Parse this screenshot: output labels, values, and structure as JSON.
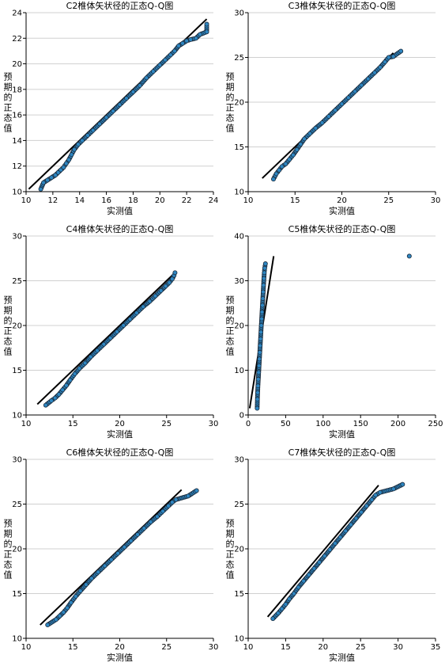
{
  "chart_data": [
    {
      "type": "scatter",
      "title": "C2椎体矢状径的正态Q-Q图",
      "xlabel": "实测值",
      "ylabel": "预期的正态值",
      "xlim": [
        10,
        24
      ],
      "ylim": [
        10,
        24
      ],
      "xticks": [
        "10",
        "12",
        "14",
        "16",
        "18",
        "20",
        "22",
        "24"
      ],
      "yticks": [
        "10",
        "12",
        "14",
        "16",
        "18",
        "20",
        "22",
        "24"
      ],
      "grid": true,
      "reference_line": [
        [
          10.2,
          10.2
        ],
        [
          23.5,
          23.5
        ]
      ],
      "points": [
        [
          11.1,
          10.2
        ],
        [
          11.3,
          10.7
        ],
        [
          11.6,
          10.9
        ],
        [
          11.9,
          11.1
        ],
        [
          12.2,
          11.3
        ],
        [
          12.4,
          11.5
        ],
        [
          12.6,
          11.7
        ],
        [
          12.8,
          11.9
        ],
        [
          13.0,
          12.2
        ],
        [
          13.2,
          12.5
        ],
        [
          13.4,
          12.9
        ],
        [
          13.6,
          13.3
        ],
        [
          13.9,
          13.7
        ],
        [
          14.2,
          14.0
        ],
        [
          14.6,
          14.4
        ],
        [
          15.0,
          14.8
        ],
        [
          15.5,
          15.3
        ],
        [
          16.0,
          15.8
        ],
        [
          16.5,
          16.3
        ],
        [
          17.0,
          16.8
        ],
        [
          17.5,
          17.3
        ],
        [
          18.0,
          17.8
        ],
        [
          18.5,
          18.3
        ],
        [
          19.0,
          18.9
        ],
        [
          19.5,
          19.4
        ],
        [
          20.0,
          19.9
        ],
        [
          20.4,
          20.3
        ],
        [
          20.8,
          20.7
        ],
        [
          21.1,
          21.0
        ],
        [
          21.4,
          21.4
        ],
        [
          21.7,
          21.6
        ],
        [
          22.0,
          21.8
        ],
        [
          22.3,
          21.9
        ],
        [
          22.7,
          22.0
        ],
        [
          23.0,
          22.3
        ],
        [
          23.5,
          22.5
        ],
        [
          23.5,
          23.1
        ]
      ]
    },
    {
      "type": "scatter",
      "title": "C3椎体矢状径的正态Q-Q图",
      "xlabel": "实测值",
      "ylabel": "预期的正态值",
      "xlim": [
        10,
        30
      ],
      "ylim": [
        10,
        30
      ],
      "xticks": [
        "10",
        "15",
        "20",
        "25",
        "30"
      ],
      "yticks": [
        "10",
        "15",
        "20",
        "25",
        "30"
      ],
      "grid": true,
      "reference_line": [
        [
          11.5,
          11.5
        ],
        [
          25.5,
          25.5
        ]
      ],
      "points": [
        [
          12.7,
          11.4
        ],
        [
          13.0,
          12.0
        ],
        [
          13.3,
          12.4
        ],
        [
          13.6,
          12.8
        ],
        [
          14.0,
          13.1
        ],
        [
          14.4,
          13.6
        ],
        [
          14.8,
          14.1
        ],
        [
          15.2,
          14.7
        ],
        [
          15.6,
          15.3
        ],
        [
          16.0,
          15.9
        ],
        [
          16.6,
          16.5
        ],
        [
          17.2,
          17.1
        ],
        [
          17.9,
          17.7
        ],
        [
          18.6,
          18.4
        ],
        [
          19.3,
          19.1
        ],
        [
          20.0,
          19.8
        ],
        [
          20.7,
          20.5
        ],
        [
          21.4,
          21.2
        ],
        [
          22.1,
          21.9
        ],
        [
          22.8,
          22.6
        ],
        [
          23.5,
          23.3
        ],
        [
          24.1,
          23.9
        ],
        [
          24.6,
          24.5
        ],
        [
          25.0,
          25.0
        ],
        [
          25.5,
          25.1
        ],
        [
          26.3,
          25.7
        ]
      ]
    },
    {
      "type": "scatter",
      "title": "C4椎体矢状径的正态Q-Q图",
      "xlabel": "实测值",
      "ylabel": "预期的正态值",
      "xlim": [
        10,
        30
      ],
      "ylim": [
        10,
        30
      ],
      "xticks": [
        "10",
        "15",
        "20",
        "25",
        "30"
      ],
      "yticks": [
        "10",
        "15",
        "20",
        "25",
        "30"
      ],
      "grid": true,
      "reference_line": [
        [
          11.2,
          11.2
        ],
        [
          25.8,
          25.8
        ]
      ],
      "points": [
        [
          12.1,
          11.1
        ],
        [
          12.7,
          11.6
        ],
        [
          13.1,
          11.9
        ],
        [
          13.5,
          12.3
        ],
        [
          13.9,
          12.8
        ],
        [
          14.3,
          13.3
        ],
        [
          14.7,
          13.9
        ],
        [
          15.2,
          14.6
        ],
        [
          15.7,
          15.2
        ],
        [
          16.3,
          15.8
        ],
        [
          16.9,
          16.5
        ],
        [
          17.6,
          17.2
        ],
        [
          18.3,
          17.9
        ],
        [
          19.0,
          18.6
        ],
        [
          19.7,
          19.3
        ],
        [
          20.4,
          20.0
        ],
        [
          21.1,
          20.7
        ],
        [
          21.8,
          21.4
        ],
        [
          22.5,
          22.1
        ],
        [
          23.2,
          22.7
        ],
        [
          23.8,
          23.3
        ],
        [
          24.4,
          23.9
        ],
        [
          24.9,
          24.4
        ],
        [
          25.3,
          24.8
        ],
        [
          25.6,
          25.2
        ],
        [
          25.8,
          25.6
        ],
        [
          25.9,
          25.9
        ]
      ]
    },
    {
      "type": "scatter",
      "title": "C5椎体矢状径的正态Q-Q图",
      "xlabel": "实测值",
      "ylabel": "预期的正态值",
      "xlim": [
        0,
        250
      ],
      "ylim": [
        0,
        40
      ],
      "xticks": [
        "0",
        "50",
        "100",
        "150",
        "200",
        "250"
      ],
      "yticks": [
        "0",
        "10",
        "20",
        "30",
        "40"
      ],
      "grid": true,
      "reference_line": [
        [
          2,
          1.5
        ],
        [
          34,
          35.5
        ]
      ],
      "points": [
        [
          12,
          1.5
        ],
        [
          12.3,
          3.5
        ],
        [
          12.6,
          5.0
        ],
        [
          13,
          6.5
        ],
        [
          13.5,
          8.0
        ],
        [
          14,
          9.5
        ],
        [
          14.5,
          11.0
        ],
        [
          15,
          12.5
        ],
        [
          15.5,
          14.0
        ],
        [
          16,
          15.5
        ],
        [
          16.5,
          17.0
        ],
        [
          17,
          18.5
        ],
        [
          17.5,
          20.0
        ],
        [
          18,
          21.5
        ],
        [
          18.5,
          23.0
        ],
        [
          19,
          24.5
        ],
        [
          19.5,
          26.0
        ],
        [
          20,
          27.5
        ],
        [
          20.5,
          29.0
        ],
        [
          21,
          30.5
        ],
        [
          21.5,
          31.8
        ],
        [
          22,
          32.8
        ],
        [
          23,
          33.8
        ],
        [
          215,
          35.5
        ]
      ]
    },
    {
      "type": "scatter",
      "title": "C6椎体矢状径的正态Q-Q图",
      "xlabel": "实测值",
      "ylabel": "预期的正态值",
      "xlim": [
        10,
        30
      ],
      "ylim": [
        10,
        30
      ],
      "xticks": [
        "10",
        "15",
        "20",
        "25",
        "30"
      ],
      "yticks": [
        "10",
        "15",
        "20",
        "25",
        "30"
      ],
      "grid": true,
      "reference_line": [
        [
          11.5,
          11.5
        ],
        [
          26.6,
          26.6
        ]
      ],
      "points": [
        [
          12.3,
          11.5
        ],
        [
          13.2,
          12.1
        ],
        [
          13.6,
          12.5
        ],
        [
          14.0,
          12.9
        ],
        [
          14.4,
          13.4
        ],
        [
          14.8,
          14.0
        ],
        [
          15.3,
          14.7
        ],
        [
          15.8,
          15.3
        ],
        [
          16.4,
          16.0
        ],
        [
          17.0,
          16.7
        ],
        [
          17.7,
          17.4
        ],
        [
          18.4,
          18.1
        ],
        [
          19.1,
          18.8
        ],
        [
          19.8,
          19.5
        ],
        [
          20.5,
          20.2
        ],
        [
          21.2,
          20.9
        ],
        [
          21.9,
          21.6
        ],
        [
          22.6,
          22.3
        ],
        [
          23.3,
          23.0
        ],
        [
          24.0,
          23.6
        ],
        [
          24.6,
          24.2
        ],
        [
          25.2,
          24.8
        ],
        [
          25.6,
          25.2
        ],
        [
          26.0,
          25.5
        ],
        [
          27.3,
          25.9
        ],
        [
          28.2,
          26.5
        ]
      ]
    },
    {
      "type": "scatter",
      "title": "C7椎体矢状径的正态Q-Q图",
      "xlabel": "实测值",
      "ylabel": "预期的正态值",
      "xlim": [
        10,
        35
      ],
      "ylim": [
        10,
        30
      ],
      "xticks": [
        "10",
        "15",
        "20",
        "25",
        "30",
        "35"
      ],
      "yticks": [
        "10",
        "15",
        "20",
        "25",
        "30"
      ],
      "grid": true,
      "reference_line": [
        [
          12.6,
          12.4
        ],
        [
          27.4,
          27.1
        ]
      ],
      "points": [
        [
          13.3,
          12.2
        ],
        [
          14.0,
          12.8
        ],
        [
          14.5,
          13.3
        ],
        [
          15.0,
          13.8
        ],
        [
          15.5,
          14.4
        ],
        [
          16.1,
          15.0
        ],
        [
          16.7,
          15.7
        ],
        [
          17.4,
          16.4
        ],
        [
          18.1,
          17.1
        ],
        [
          18.8,
          17.8
        ],
        [
          19.5,
          18.5
        ],
        [
          20.2,
          19.2
        ],
        [
          20.9,
          19.9
        ],
        [
          21.6,
          20.6
        ],
        [
          22.3,
          21.3
        ],
        [
          23.0,
          22.0
        ],
        [
          23.7,
          22.7
        ],
        [
          24.4,
          23.4
        ],
        [
          25.1,
          24.1
        ],
        [
          25.8,
          24.8
        ],
        [
          26.5,
          25.5
        ],
        [
          27.0,
          26.0
        ],
        [
          27.6,
          26.3
        ],
        [
          29.4,
          26.7
        ],
        [
          30.6,
          27.2
        ]
      ]
    }
  ]
}
